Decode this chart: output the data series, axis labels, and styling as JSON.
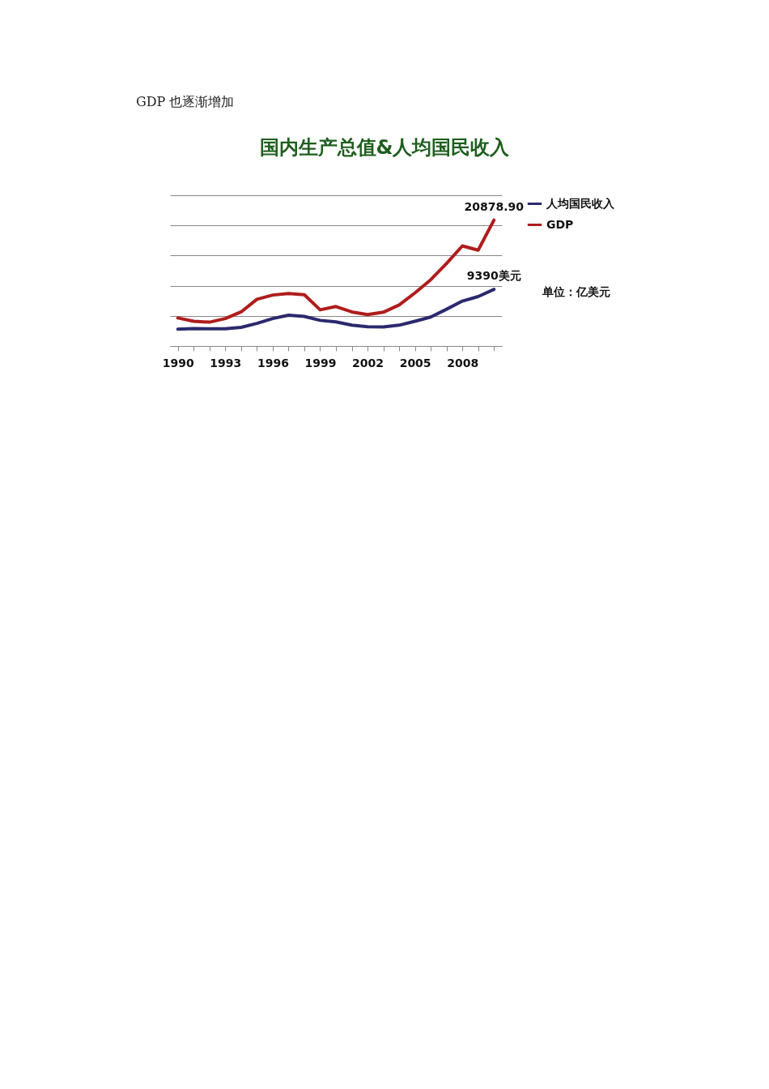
{
  "chart_data": {
    "type": "line",
    "title": "国内生产总值&人均国民收入",
    "annotations": [
      "GDP 也逐渐增加",
      "单位：亿美元"
    ],
    "x": [
      1990,
      1991,
      1992,
      1993,
      1994,
      1995,
      1996,
      1997,
      1998,
      1999,
      2000,
      2001,
      2002,
      2003,
      2004,
      2005,
      2006,
      2007,
      2008,
      2009,
      2010
    ],
    "xlim": [
      1989.5,
      2010.5
    ],
    "xticks": [
      1990,
      {
        "value": 1991,
        "label": null
      },
      {
        "value": 1992,
        "label": null
      },
      1993,
      {
        "value": 1994,
        "label": null
      },
      {
        "value": 1995,
        "label": null
      },
      1996,
      {
        "value": 1997,
        "label": null
      },
      {
        "value": 1998,
        "label": null
      },
      1999,
      {
        "value": 2000,
        "label": null
      },
      {
        "value": 2001,
        "label": null
      },
      2002,
      {
        "value": 2003,
        "label": null
      },
      {
        "value": 2004,
        "label": null
      },
      2005,
      {
        "value": 2006,
        "label": null
      },
      {
        "value": 2007,
        "label": null
      },
      2008,
      {
        "value": 2009,
        "label": null
      },
      {
        "value": 2010,
        "label": null
      }
    ],
    "ylim": [
      0,
      25000
    ],
    "yticks": [
      {
        "value": 0,
        "label": null
      },
      {
        "value": 5000,
        "label": null
      },
      {
        "value": 10000,
        "label": null
      },
      {
        "value": 15000,
        "label": null
      },
      {
        "value": 20000,
        "label": null
      },
      {
        "value": 25000,
        "label": null
      }
    ],
    "tick_labels": "x",
    "grid": "y",
    "legend": "right",
    "series": [
      {
        "name": "人均国民收入",
        "color": "#2b2a6e",
        "values": [
          2800,
          2900,
          2850,
          2850,
          3100,
          3750,
          4550,
          5100,
          4900,
          4250,
          4000,
          3450,
          3200,
          3150,
          3450,
          4100,
          4800,
          6100,
          7450,
          8200,
          9390
        ],
        "value_labels": [
          null,
          null,
          null,
          null,
          null,
          null,
          null,
          null,
          null,
          null,
          null,
          null,
          null,
          null,
          null,
          null,
          null,
          null,
          null,
          null,
          "9390美元"
        ]
      },
      {
        "name": "GDP",
        "color": "#b01c1c",
        "values": [
          4650,
          4100,
          3950,
          4550,
          5650,
          7750,
          8450,
          8700,
          8500,
          6000,
          6550,
          5650,
          5200,
          5600,
          6800,
          8800,
          11000,
          13700,
          16600,
          15900,
          20878.9
        ],
        "value_labels": [
          null,
          null,
          null,
          null,
          null,
          null,
          null,
          null,
          null,
          null,
          null,
          null,
          null,
          null,
          null,
          null,
          null,
          null,
          null,
          null,
          "20878.90"
        ]
      }
    ]
  }
}
